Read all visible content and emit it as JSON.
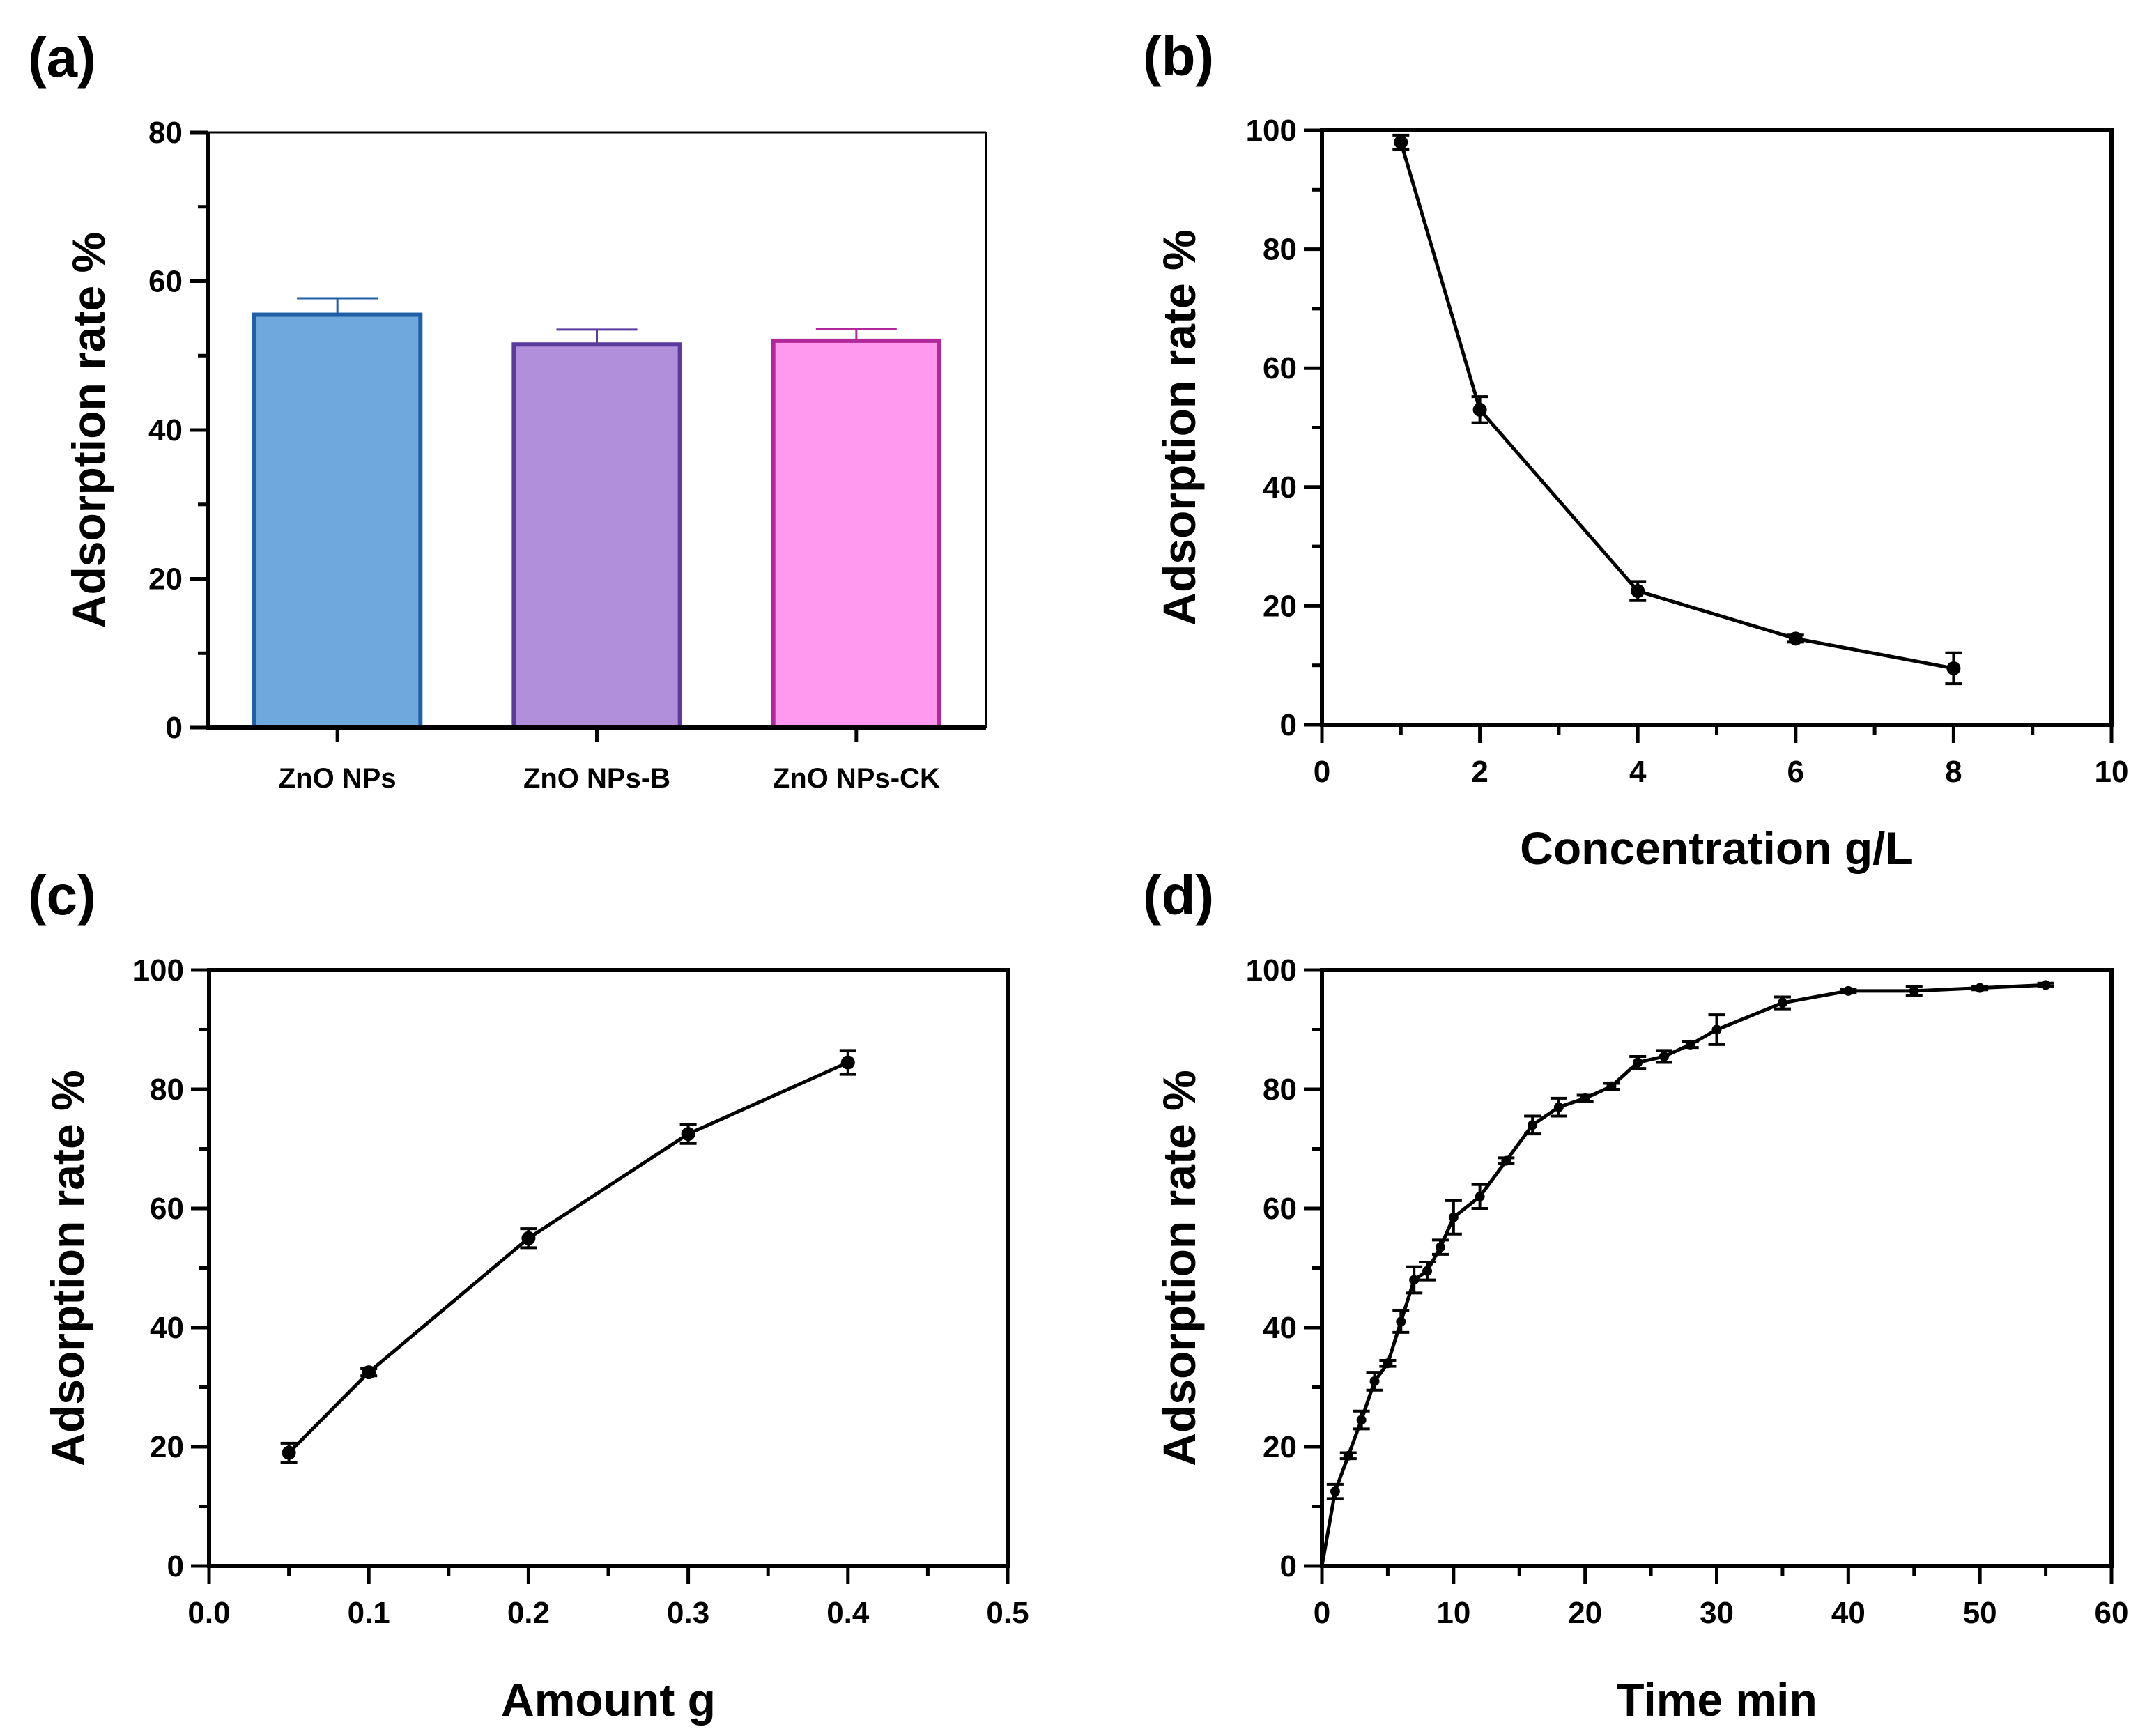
{
  "chart_data": [
    {
      "id": "a",
      "panel_label": "(a)",
      "type": "bar",
      "title": "",
      "xlabel": "",
      "ylabel": "Adsorption rate %",
      "ylim": [
        0,
        80
      ],
      "yticks": [
        0,
        20,
        40,
        60,
        80
      ],
      "ytick_labels": [
        "0",
        "20",
        "40",
        "60",
        "80"
      ],
      "categories": [
        "ZnO NPs",
        "ZnO NPs-B",
        "ZnO NPs-CK"
      ],
      "values": [
        55.5,
        51.5,
        52.0
      ],
      "errors": [
        2.2,
        2.0,
        1.6
      ],
      "fill_colors": [
        "#6fa8dc",
        "#b28fdb",
        "#ff99f0"
      ],
      "edge_colors": [
        "#1f5fa8",
        "#5b3a9e",
        "#b0289a"
      ],
      "grid": false
    },
    {
      "id": "b",
      "panel_label": "(b)",
      "type": "line",
      "title": "",
      "xlabel": "Concentration g/L",
      "ylabel": "Adsorption rate %",
      "xlim": [
        0,
        10
      ],
      "ylim": [
        0,
        100
      ],
      "xticks": [
        0,
        2,
        4,
        6,
        8,
        10
      ],
      "xtick_labels": [
        "0",
        "2",
        "4",
        "6",
        "8",
        "10"
      ],
      "yticks": [
        0,
        20,
        40,
        60,
        80,
        100
      ],
      "ytick_labels": [
        "0",
        "20",
        "40",
        "60",
        "80",
        "100"
      ],
      "x": [
        1,
        2,
        4,
        6,
        8
      ],
      "y": [
        98,
        53,
        22.5,
        14.5,
        9.5
      ],
      "yerr": [
        1.2,
        2.2,
        1.6,
        0.6,
        2.6
      ],
      "grid": false
    },
    {
      "id": "c",
      "panel_label": "(c)",
      "type": "line",
      "title": "",
      "xlabel": "Amount g",
      "ylabel": "Adsorption rate %",
      "xlim": [
        0,
        0.5
      ],
      "ylim": [
        0,
        100
      ],
      "xticks": [
        0,
        0.1,
        0.2,
        0.3,
        0.4,
        0.5
      ],
      "xtick_labels": [
        "0.0",
        "0.1",
        "0.2",
        "0.3",
        "0.4",
        "0.5"
      ],
      "yticks": [
        0,
        20,
        40,
        60,
        80,
        100
      ],
      "ytick_labels": [
        "0",
        "20",
        "40",
        "60",
        "80",
        "100"
      ],
      "x": [
        0.05,
        0.1,
        0.2,
        0.3,
        0.4
      ],
      "y": [
        19,
        32.5,
        55,
        72.5,
        84.5
      ],
      "yerr": [
        1.6,
        0.6,
        1.6,
        1.6,
        2.0
      ],
      "grid": false
    },
    {
      "id": "d",
      "panel_label": "(d)",
      "type": "line",
      "title": "",
      "xlabel": "Time min",
      "ylabel": "Adsorption rate %",
      "xlim": [
        0,
        60
      ],
      "ylim": [
        0,
        100
      ],
      "xticks": [
        0,
        10,
        20,
        30,
        40,
        50,
        60
      ],
      "xtick_labels": [
        "0",
        "10",
        "20",
        "30",
        "40",
        "50",
        "60"
      ],
      "yticks": [
        0,
        20,
        40,
        60,
        80,
        100
      ],
      "ytick_labels": [
        "0",
        "20",
        "40",
        "60",
        "80",
        "100"
      ],
      "x": [
        0,
        1,
        2,
        3,
        4,
        5,
        6,
        7,
        8,
        9,
        10,
        12,
        14,
        16,
        18,
        20,
        22,
        24,
        26,
        28,
        30,
        35,
        40,
        45,
        50,
        55
      ],
      "y": [
        0,
        12.5,
        18.5,
        24.5,
        31,
        34,
        41,
        48,
        49.5,
        53.5,
        58.5,
        62,
        68,
        74,
        77,
        78.5,
        80.5,
        84.5,
        85.5,
        87.5,
        90,
        94.5,
        96.5,
        96.5,
        97,
        97.5
      ],
      "yerr": [
        0,
        1.2,
        0.5,
        1.5,
        1.5,
        0.5,
        1.8,
        2.2,
        1.5,
        1.2,
        2.8,
        2.0,
        0.5,
        1.5,
        1.5,
        0.5,
        0.5,
        1.0,
        1.0,
        0.5,
        2.5,
        1.0,
        0.3,
        0.8,
        0.3,
        0.3
      ],
      "grid": false
    }
  ]
}
